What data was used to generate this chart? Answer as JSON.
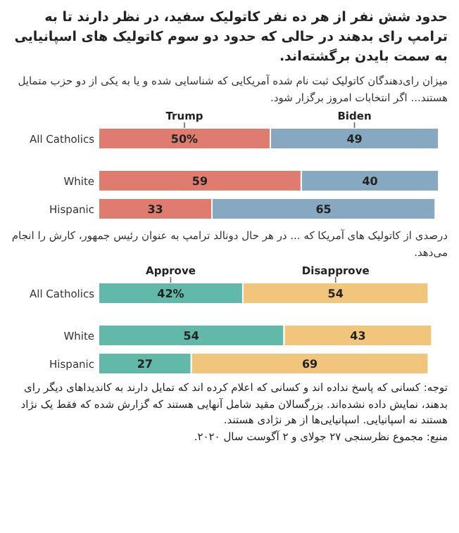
{
  "chart_data": [
    {
      "type": "bar",
      "orientation": "horizontal",
      "stacked": true,
      "legend": "top",
      "title": "حدود شش نفر از هر ده نفر کاتولیک سفید، در نظر دارند تا به ترامپ رای بدهند در حالی که حدود دو سوم کاتولیک های اسپانیایی به سمت بایدن برگشته‌اند.",
      "subtitle": "میزان رای‌دهندگان کاتولیک ثبت نام شده آمریکایی که شناسایی شده و یا به یکی از دو حزب متمایل هستند... اگر انتخابات امروز برگزار شود.",
      "categories": [
        "All Catholics",
        "White",
        "Hispanic"
      ],
      "series": [
        {
          "name": "Trump",
          "color": "#e07b6f",
          "values": [
            50,
            59,
            33
          ],
          "value_labels": [
            "50%",
            "59",
            "33"
          ]
        },
        {
          "name": "Biden",
          "color": "#86a8c0",
          "values": [
            49,
            40,
            65
          ],
          "value_labels": [
            "49",
            "40",
            "65"
          ]
        }
      ]
    },
    {
      "type": "bar",
      "orientation": "horizontal",
      "stacked": true,
      "legend": "top",
      "subtitle": "درصدی از کاتولیک های آمریکا که ... در هر حال دونالد ترامپ به عنوان رئیس جمهور، کارش را انجام می‌دهد.",
      "categories": [
        "All Catholics",
        "White",
        "Hispanic"
      ],
      "series": [
        {
          "name": "Approve",
          "color": "#63b9a9",
          "values": [
            42,
            54,
            27
          ],
          "value_labels": [
            "42%",
            "54",
            "27"
          ]
        },
        {
          "name": "Disapprove",
          "color": "#f2c57c",
          "values": [
            54,
            43,
            69
          ],
          "value_labels": [
            "54",
            "43",
            "69"
          ]
        }
      ],
      "annotations": [
        "توجه: کسانی که پاسخ نداده اند و کسانی که اعلام کرده اند که تمایل دارند به کاندیداهای دیگر رای بدهند، نمایش داده نشده‌اند. بزرگسالان مقید شامل آنهایی هستند که گزارش شده که فقط یک نژاد هستند نه اسپانیایی. اسپانیایی‌ها از هر نژادی هستند.",
        "منبع: مجموع نظرسنجی ۲۷ جولای و ۲ آگوست سال ۲۰۲۰."
      ]
    }
  ]
}
